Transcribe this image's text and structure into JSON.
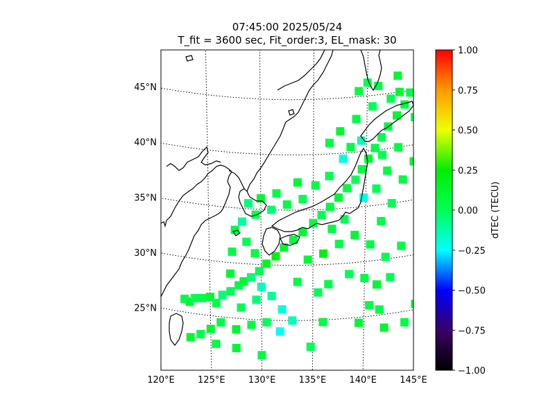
{
  "chart_data": {
    "type": "heatmap",
    "title": "07:45:00 2025/05/24",
    "subtitle": "T_fit = 3600 sec, Fit_order:3, EL_mask: 30",
    "map": {
      "lon_range": [
        120,
        145
      ],
      "lat_range": [
        20,
        49
      ],
      "lon_ticks": [
        120,
        125,
        130,
        135,
        140,
        145
      ],
      "lon_tick_labels": [
        "120°E",
        "125°E",
        "130°E",
        "135°E",
        "140°E",
        "145°E"
      ],
      "lat_ticks": [
        25,
        30,
        35,
        40,
        45
      ],
      "lat_tick_labels": [
        "25°N",
        "30°N",
        "35°N",
        "40°N",
        "45°N"
      ],
      "graticule": "dotted",
      "coastlines": true
    },
    "colorbar": {
      "label": "dTEC (TECU)",
      "range": [
        -1.0,
        1.0
      ],
      "ticks": [
        1.0,
        0.75,
        0.5,
        0.25,
        0.0,
        -0.25,
        -0.5,
        -0.75,
        -1.0
      ],
      "tick_labels": [
        "1.00",
        "0.75",
        "0.50",
        "0.25",
        "0.00",
        "−0.25",
        "−0.50",
        "−0.75",
        "−1.00"
      ],
      "colormap": "nipy_spectral-like",
      "colors": [
        "#000000",
        "#2a004f",
        "#0000ff",
        "#00ffff",
        "#00ff00",
        "#ffff00",
        "#ff8000",
        "#ff0000"
      ]
    },
    "colors": {
      "positive_green": "#00ff00",
      "mid_green": "#00ee44",
      "cyan": "#00ffdd",
      "light_cyan": "#00ffff"
    },
    "points": [
      {
        "lon": 122.5,
        "lat": 26.2,
        "v": 0.05
      },
      {
        "lon": 123.0,
        "lat": 26.0,
        "v": 0.1
      },
      {
        "lon": 123.5,
        "lat": 26.4,
        "v": 0.0
      },
      {
        "lon": 124.2,
        "lat": 26.5,
        "v": 0.05
      },
      {
        "lon": 125.0,
        "lat": 26.7,
        "v": 0.1
      },
      {
        "lon": 125.6,
        "lat": 26.2,
        "v": 0.05
      },
      {
        "lon": 126.2,
        "lat": 27.0,
        "v": -0.05
      },
      {
        "lon": 127.0,
        "lat": 27.4,
        "v": 0.0
      },
      {
        "lon": 127.8,
        "lat": 28.0,
        "v": 0.05
      },
      {
        "lon": 128.3,
        "lat": 28.4,
        "v": 0.1
      },
      {
        "lon": 129.0,
        "lat": 28.8,
        "v": -0.05
      },
      {
        "lon": 129.8,
        "lat": 29.4,
        "v": 0.0
      },
      {
        "lon": 130.5,
        "lat": 30.1,
        "v": 0.15
      },
      {
        "lon": 131.4,
        "lat": 30.8,
        "v": 0.2
      },
      {
        "lon": 132.2,
        "lat": 31.6,
        "v": 0.1
      },
      {
        "lon": 133.1,
        "lat": 32.3,
        "v": 0.05
      },
      {
        "lon": 134.0,
        "lat": 33.0,
        "v": 0.1
      },
      {
        "lon": 135.0,
        "lat": 33.8,
        "v": 0.05
      },
      {
        "lon": 135.8,
        "lat": 34.5,
        "v": 0.0
      },
      {
        "lon": 136.6,
        "lat": 35.2,
        "v": 0.05
      },
      {
        "lon": 137.4,
        "lat": 36.0,
        "v": 0.1
      },
      {
        "lon": 138.2,
        "lat": 36.8,
        "v": 0.05
      },
      {
        "lon": 139.0,
        "lat": 37.5,
        "v": 0.0
      },
      {
        "lon": 139.6,
        "lat": 38.4,
        "v": 0.05
      },
      {
        "lon": 140.2,
        "lat": 39.3,
        "v": 0.1
      },
      {
        "lon": 140.8,
        "lat": 40.2,
        "v": 0.05
      },
      {
        "lon": 141.4,
        "lat": 41.1,
        "v": 0.0
      },
      {
        "lon": 142.0,
        "lat": 42.0,
        "v": 0.05
      },
      {
        "lon": 142.8,
        "lat": 42.9,
        "v": 0.1
      },
      {
        "lon": 143.5,
        "lat": 43.8,
        "v": 0.05
      },
      {
        "lon": 143.0,
        "lat": 45.0,
        "v": 0.1
      },
      {
        "lon": 142.2,
        "lat": 44.5,
        "v": 0.0
      },
      {
        "lon": 139.5,
        "lat": 41.0,
        "v": -0.15
      },
      {
        "lon": 138.5,
        "lat": 40.5,
        "v": 0.05
      },
      {
        "lon": 137.8,
        "lat": 39.5,
        "v": -0.2
      },
      {
        "lon": 136.5,
        "lat": 38.0,
        "v": 0.0
      },
      {
        "lon": 135.2,
        "lat": 37.2,
        "v": 0.05
      },
      {
        "lon": 134.0,
        "lat": 36.0,
        "v": 0.0
      },
      {
        "lon": 132.5,
        "lat": 35.5,
        "v": 0.05
      },
      {
        "lon": 131.0,
        "lat": 35.0,
        "v": -0.05
      },
      {
        "lon": 129.5,
        "lat": 34.5,
        "v": 0.0
      },
      {
        "lon": 128.2,
        "lat": 33.8,
        "v": -0.1
      },
      {
        "lon": 127.5,
        "lat": 33.0,
        "v": 0.05
      },
      {
        "lon": 128.6,
        "lat": 32.0,
        "v": 0.0
      },
      {
        "lon": 129.4,
        "lat": 31.0,
        "v": 0.05
      },
      {
        "lon": 130.0,
        "lat": 28.0,
        "v": -0.15
      },
      {
        "lon": 131.0,
        "lat": 27.2,
        "v": -0.1
      },
      {
        "lon": 132.0,
        "lat": 26.0,
        "v": -0.2
      },
      {
        "lon": 133.0,
        "lat": 25.0,
        "v": -0.15
      },
      {
        "lon": 131.8,
        "lat": 24.0,
        "v": -0.25
      },
      {
        "lon": 130.5,
        "lat": 24.8,
        "v": 0.0
      },
      {
        "lon": 129.0,
        "lat": 24.5,
        "v": 0.05
      },
      {
        "lon": 127.5,
        "lat": 24.0,
        "v": 0.1
      },
      {
        "lon": 126.0,
        "lat": 24.5,
        "v": 0.05
      },
      {
        "lon": 125.0,
        "lat": 23.8,
        "v": 0.1
      },
      {
        "lon": 124.0,
        "lat": 23.2,
        "v": 0.05
      },
      {
        "lon": 123.0,
        "lat": 22.8,
        "v": 0.1
      },
      {
        "lon": 125.5,
        "lat": 22.5,
        "v": 0.05
      },
      {
        "lon": 127.5,
        "lat": 22.3,
        "v": 0.1
      },
      {
        "lon": 130.0,
        "lat": 21.8,
        "v": 0.05
      },
      {
        "lon": 134.8,
        "lat": 22.6,
        "v": 0.0
      },
      {
        "lon": 136.0,
        "lat": 24.8,
        "v": 0.05
      },
      {
        "lon": 135.5,
        "lat": 27.5,
        "v": 0.0
      },
      {
        "lon": 136.5,
        "lat": 28.2,
        "v": 0.05
      },
      {
        "lon": 138.5,
        "lat": 29.0,
        "v": 0.0
      },
      {
        "lon": 140.0,
        "lat": 28.5,
        "v": 0.05
      },
      {
        "lon": 141.2,
        "lat": 27.8,
        "v": 0.1
      },
      {
        "lon": 142.5,
        "lat": 28.3,
        "v": 0.0
      },
      {
        "lon": 140.5,
        "lat": 26.0,
        "v": 0.05
      },
      {
        "lon": 139.5,
        "lat": 24.5,
        "v": 0.1
      },
      {
        "lon": 141.5,
        "lat": 25.5,
        "v": 0.05
      },
      {
        "lon": 142.0,
        "lat": 23.8,
        "v": 0.1
      },
      {
        "lon": 144.0,
        "lat": 24.0,
        "v": 0.05
      },
      {
        "lon": 145.0,
        "lat": 25.5,
        "v": 0.1
      },
      {
        "lon": 143.5,
        "lat": 31.0,
        "v": 0.05
      },
      {
        "lon": 142.0,
        "lat": 30.2,
        "v": 0.0
      },
      {
        "lon": 140.5,
        "lat": 31.5,
        "v": 0.05
      },
      {
        "lon": 139.0,
        "lat": 32.5,
        "v": 0.1
      },
      {
        "lon": 141.5,
        "lat": 33.5,
        "v": 0.05
      },
      {
        "lon": 142.5,
        "lat": 35.0,
        "v": 0.0
      },
      {
        "lon": 143.5,
        "lat": 37.0,
        "v": 0.05
      },
      {
        "lon": 144.5,
        "lat": 38.5,
        "v": 0.1
      },
      {
        "lon": 144.8,
        "lat": 40.5,
        "v": 0.05
      },
      {
        "lon": 144.5,
        "lat": 42.5,
        "v": 0.0
      },
      {
        "lon": 144.0,
        "lat": 44.8,
        "v": 0.05
      },
      {
        "lon": 140.5,
        "lat": 44.0,
        "v": 0.0
      },
      {
        "lon": 139.0,
        "lat": 43.0,
        "v": 0.05
      },
      {
        "lon": 137.5,
        "lat": 42.0,
        "v": 0.1
      },
      {
        "lon": 136.5,
        "lat": 41.0,
        "v": 0.05
      },
      {
        "lon": 133.5,
        "lat": 37.5,
        "v": 0.1
      },
      {
        "lon": 131.5,
        "lat": 36.5,
        "v": 0.05
      },
      {
        "lon": 130.0,
        "lat": 36.0,
        "v": 0.1
      },
      {
        "lon": 128.8,
        "lat": 35.5,
        "v": -0.05
      },
      {
        "lon": 127.2,
        "lat": 31.0,
        "v": 0.05
      },
      {
        "lon": 127.0,
        "lat": 29.0,
        "v": 0.1
      },
      {
        "lon": 128.0,
        "lat": 26.0,
        "v": 0.0
      },
      {
        "lon": 129.5,
        "lat": 26.8,
        "v": -0.05
      },
      {
        "lon": 133.5,
        "lat": 28.5,
        "v": 0.05
      },
      {
        "lon": 134.5,
        "lat": 30.5,
        "v": 0.1
      },
      {
        "lon": 136.0,
        "lat": 31.0,
        "v": 0.2
      },
      {
        "lon": 137.5,
        "lat": 31.8,
        "v": 0.05
      },
      {
        "lon": 138.0,
        "lat": 34.0,
        "v": 0.0
      },
      {
        "lon": 136.8,
        "lat": 33.2,
        "v": 0.05
      },
      {
        "lon": 139.8,
        "lat": 35.8,
        "v": -0.2
      },
      {
        "lon": 141.0,
        "lat": 36.5,
        "v": 0.0
      },
      {
        "lon": 142.0,
        "lat": 38.0,
        "v": 0.05
      },
      {
        "lon": 141.5,
        "lat": 39.5,
        "v": 0.0
      },
      {
        "lon": 143.0,
        "lat": 40.0,
        "v": 0.05
      },
      {
        "lon": 142.8,
        "lat": 46.5,
        "v": 0.1
      },
      {
        "lon": 141.0,
        "lat": 45.8,
        "v": 0.05
      },
      {
        "lon": 140.0,
        "lat": 46.2,
        "v": 0.0
      },
      {
        "lon": 139.2,
        "lat": 45.5,
        "v": 0.05
      }
    ]
  }
}
